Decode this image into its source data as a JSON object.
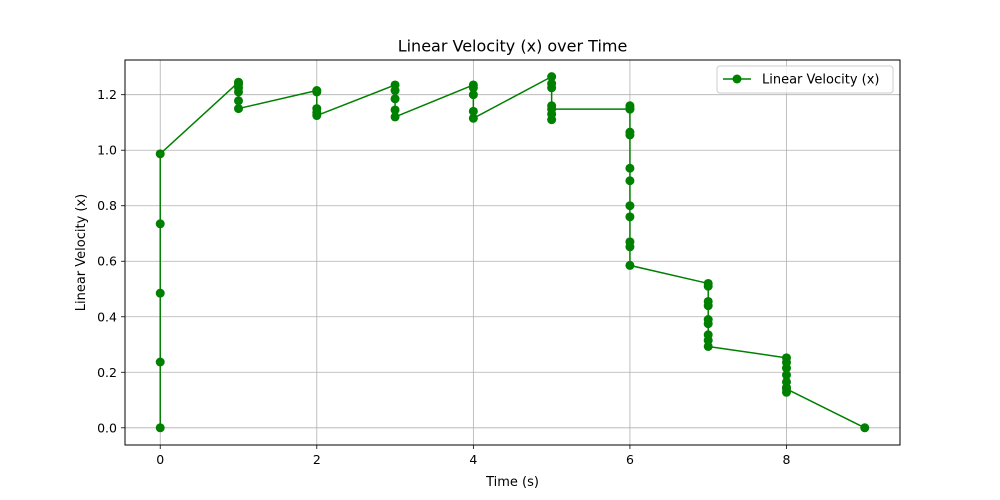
{
  "chart_data": {
    "type": "line",
    "title": "Linear Velocity (x) over Time",
    "xlabel": "Time (s)",
    "ylabel": "Linear Velocity (x)",
    "xlim": [
      -0.45,
      9.45
    ],
    "ylim": [
      -0.062,
      1.325
    ],
    "xticks": [
      0,
      2,
      4,
      6,
      8
    ],
    "yticks": [
      0.0,
      0.2,
      0.4,
      0.6,
      0.8,
      1.0,
      1.2
    ],
    "xtick_labels": [
      "0",
      "2",
      "4",
      "6",
      "8"
    ],
    "ytick_labels": [
      "0.0",
      "0.2",
      "0.4",
      "0.6",
      "0.8",
      "1.0",
      "1.2"
    ],
    "grid": true,
    "legend_position": "top-right",
    "color": "#008000",
    "series": [
      {
        "name": "Linear Velocity (x)",
        "points": [
          [
            0,
            0.0
          ],
          [
            0,
            0.237
          ],
          [
            0,
            0.485
          ],
          [
            0,
            0.735
          ],
          [
            0,
            0.987
          ],
          [
            1,
            1.245
          ],
          [
            1,
            1.238
          ],
          [
            1,
            1.225
          ],
          [
            1,
            1.21
          ],
          [
            1,
            1.178
          ],
          [
            1,
            1.15
          ],
          [
            2,
            1.215
          ],
          [
            2,
            1.21
          ],
          [
            2,
            1.15
          ],
          [
            2,
            1.135
          ],
          [
            2,
            1.125
          ],
          [
            3,
            1.235
          ],
          [
            3,
            1.215
          ],
          [
            3,
            1.185
          ],
          [
            3,
            1.145
          ],
          [
            3,
            1.12
          ],
          [
            4,
            1.235
          ],
          [
            4,
            1.225
          ],
          [
            4,
            1.2
          ],
          [
            4,
            1.14
          ],
          [
            4,
            1.115
          ],
          [
            5,
            1.265
          ],
          [
            5,
            1.24
          ],
          [
            5,
            1.225
          ],
          [
            5,
            1.16
          ],
          [
            5,
            1.13
          ],
          [
            5,
            1.11
          ],
          [
            5,
            1.148
          ],
          [
            6,
            1.148
          ],
          [
            6,
            1.16
          ],
          [
            6,
            1.15
          ],
          [
            6,
            1.065
          ],
          [
            6,
            1.055
          ],
          [
            6,
            0.935
          ],
          [
            6,
            0.89
          ],
          [
            6,
            0.8
          ],
          [
            6,
            0.76
          ],
          [
            6,
            0.67
          ],
          [
            6,
            0.652
          ],
          [
            6,
            0.585
          ],
          [
            7,
            0.52
          ],
          [
            7,
            0.51
          ],
          [
            7,
            0.455
          ],
          [
            7,
            0.44
          ],
          [
            7,
            0.39
          ],
          [
            7,
            0.375
          ],
          [
            7,
            0.335
          ],
          [
            7,
            0.315
          ],
          [
            7,
            0.293
          ],
          [
            8,
            0.252
          ],
          [
            8,
            0.235
          ],
          [
            8,
            0.215
          ],
          [
            8,
            0.19
          ],
          [
            8,
            0.165
          ],
          [
            8,
            0.145
          ],
          [
            8,
            0.128
          ],
          [
            8,
            0.14
          ],
          [
            9,
            0.0
          ]
        ]
      }
    ]
  }
}
